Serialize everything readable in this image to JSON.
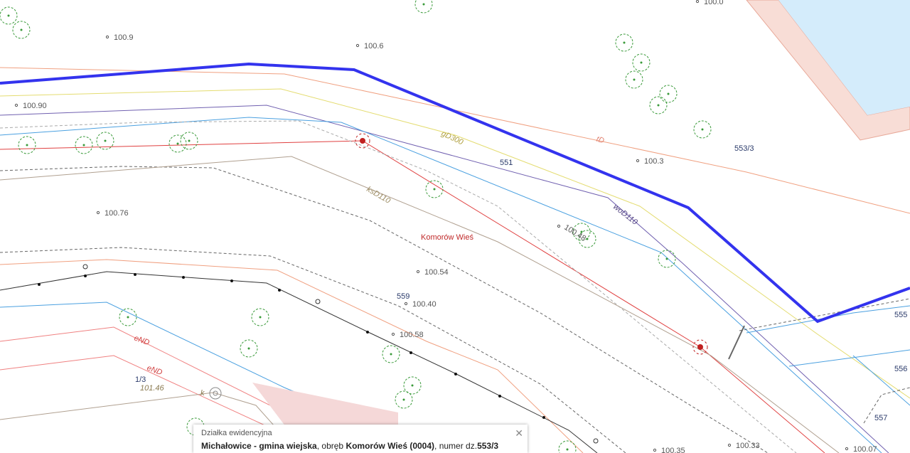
{
  "map": {
    "elevations": [
      "100.9",
      "100.6",
      "100.0",
      "100.90",
      "100.3",
      "100.76",
      "100.48",
      "100.54",
      "100.40",
      "100.58",
      "101.46",
      "100.35",
      "100.33",
      "100.07"
    ],
    "parcels": [
      "551",
      "553/3",
      "559",
      "555",
      "556",
      "557",
      "1/3"
    ],
    "utilities": [
      "gD300",
      "tD",
      "ksD110",
      "woD110",
      "eND",
      "eND",
      "k"
    ],
    "place": "Komorów Wieś"
  },
  "popup": {
    "title": "Działka ewidencyjna",
    "commune": "Michałowice - gmina wiejska",
    "precinct_prefix": ", obręb ",
    "precinct": "Komorów Wieś (0004)",
    "number_prefix": ", numer dz.",
    "number": "553/3"
  }
}
